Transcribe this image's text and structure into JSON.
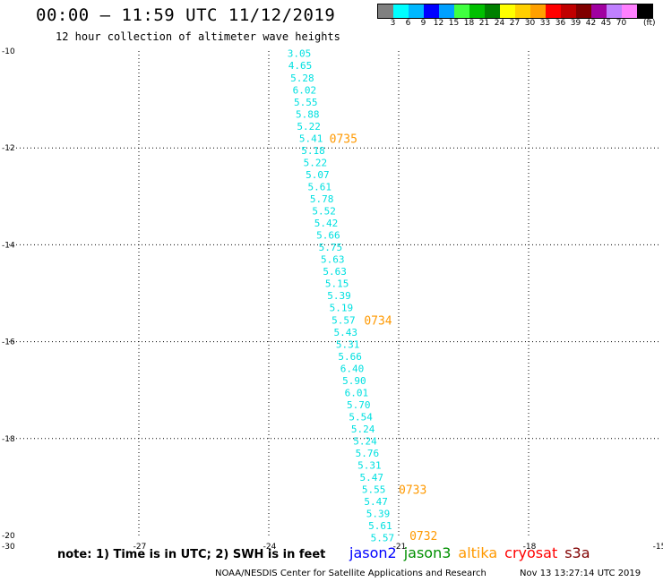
{
  "header": {
    "title": "00:00 – 11:59 UTC 11/12/2019",
    "subtitle": "12 hour collection of altimeter wave heights"
  },
  "colorbar": {
    "colors": [
      "#808080",
      "#00ffff",
      "#00b8ff",
      "#0000ff",
      "#00a0ff",
      "#40ff40",
      "#00c000",
      "#008000",
      "#ffff00",
      "#ffd000",
      "#ffa000",
      "#ff0000",
      "#c00000",
      "#800000",
      "#a000a0",
      "#c080ff",
      "#ff80ff",
      "#000000"
    ],
    "labels": [
      "3",
      "6",
      "9",
      "12",
      "15",
      "18",
      "21",
      "24",
      "27",
      "30",
      "33",
      "36",
      "39",
      "42",
      "45",
      "70"
    ],
    "units": "(ft)"
  },
  "chart_data": {
    "type": "scatter",
    "x_ticks": [
      "-30",
      "-27",
      "-24",
      "-21",
      "-18",
      "-15"
    ],
    "y_ticks": [
      "-10",
      "-12",
      "-14",
      "-16",
      "-18",
      "-20"
    ],
    "xlim": [
      -30,
      -15
    ],
    "ylim": [
      -20,
      -10
    ],
    "grid": true,
    "swh_color": "#00e0e0",
    "time_color": "#ff9900",
    "swh_points": [
      {
        "lon": -23.57,
        "lat": -10.05,
        "label": "3.05"
      },
      {
        "lon": -23.55,
        "lat": -10.3,
        "label": "4.65"
      },
      {
        "lon": -23.5,
        "lat": -10.55,
        "label": "5.28"
      },
      {
        "lon": -23.45,
        "lat": -10.8,
        "label": "6.02"
      },
      {
        "lon": -23.42,
        "lat": -11.05,
        "label": "5.55"
      },
      {
        "lon": -23.38,
        "lat": -11.3,
        "label": "5.88"
      },
      {
        "lon": -23.35,
        "lat": -11.55,
        "label": "5.22"
      },
      {
        "lon": -23.3,
        "lat": -11.8,
        "label": "5.41"
      },
      {
        "lon": -23.25,
        "lat": -12.05,
        "label": "5.18"
      },
      {
        "lon": -23.2,
        "lat": -12.3,
        "label": "5.22"
      },
      {
        "lon": -23.15,
        "lat": -12.55,
        "label": "5.07"
      },
      {
        "lon": -23.1,
        "lat": -12.8,
        "label": "5.61"
      },
      {
        "lon": -23.05,
        "lat": -13.05,
        "label": "5.78"
      },
      {
        "lon": -23.0,
        "lat": -13.3,
        "label": "5.52"
      },
      {
        "lon": -22.95,
        "lat": -13.55,
        "label": "5.42"
      },
      {
        "lon": -22.9,
        "lat": -13.8,
        "label": "5.66"
      },
      {
        "lon": -22.85,
        "lat": -14.05,
        "label": "5.75"
      },
      {
        "lon": -22.8,
        "lat": -14.3,
        "label": "5.63"
      },
      {
        "lon": -22.75,
        "lat": -14.55,
        "label": "5.63"
      },
      {
        "lon": -22.7,
        "lat": -14.8,
        "label": "5.15"
      },
      {
        "lon": -22.65,
        "lat": -15.05,
        "label": "5.39"
      },
      {
        "lon": -22.6,
        "lat": -15.3,
        "label": "5.19"
      },
      {
        "lon": -22.55,
        "lat": -15.55,
        "label": "5.57"
      },
      {
        "lon": -22.5,
        "lat": -15.8,
        "label": "5.43"
      },
      {
        "lon": -22.45,
        "lat": -16.05,
        "label": "5.31"
      },
      {
        "lon": -22.4,
        "lat": -16.3,
        "label": "5.66"
      },
      {
        "lon": -22.35,
        "lat": -16.55,
        "label": "6.40"
      },
      {
        "lon": -22.3,
        "lat": -16.8,
        "label": "5.90"
      },
      {
        "lon": -22.25,
        "lat": -17.05,
        "label": "6.01"
      },
      {
        "lon": -22.2,
        "lat": -17.3,
        "label": "5.70"
      },
      {
        "lon": -22.15,
        "lat": -17.55,
        "label": "5.54"
      },
      {
        "lon": -22.1,
        "lat": -17.8,
        "label": "5.24"
      },
      {
        "lon": -22.05,
        "lat": -18.05,
        "label": "5.24"
      },
      {
        "lon": -22.0,
        "lat": -18.3,
        "label": "5.76"
      },
      {
        "lon": -21.95,
        "lat": -18.55,
        "label": "5.31"
      },
      {
        "lon": -21.9,
        "lat": -18.8,
        "label": "5.47"
      },
      {
        "lon": -21.85,
        "lat": -19.05,
        "label": "5.55"
      },
      {
        "lon": -21.8,
        "lat": -19.3,
        "label": "5.47"
      },
      {
        "lon": -21.75,
        "lat": -19.55,
        "label": "5.39"
      },
      {
        "lon": -21.7,
        "lat": -19.8,
        "label": "5.61"
      },
      {
        "lon": -21.65,
        "lat": -20.05,
        "label": "5.57"
      }
    ],
    "time_labels": [
      {
        "lon": -22.6,
        "lat": -11.8,
        "label": "0735"
      },
      {
        "lon": -21.8,
        "lat": -15.55,
        "label": "0734"
      },
      {
        "lon": -21.0,
        "lat": -19.05,
        "label": "0733"
      },
      {
        "lon": -20.75,
        "lat": -20.0,
        "label": "0732"
      }
    ]
  },
  "footer": {
    "note": "note: 1) Time is in UTC; 2) SWH is in feet",
    "missions": [
      {
        "name": "jason2",
        "color": "#0000ff"
      },
      {
        "name": "jason3",
        "color": "#009000"
      },
      {
        "name": "altika",
        "color": "#ff9900"
      },
      {
        "name": "cryosat",
        "color": "#ff0000"
      },
      {
        "name": "s3a",
        "color": "#800000"
      }
    ],
    "credit": "NOAA/NESDIS Center for Satellite Applications and Research",
    "timestamp": "Nov 13 13:27:14 UTC 2019"
  }
}
